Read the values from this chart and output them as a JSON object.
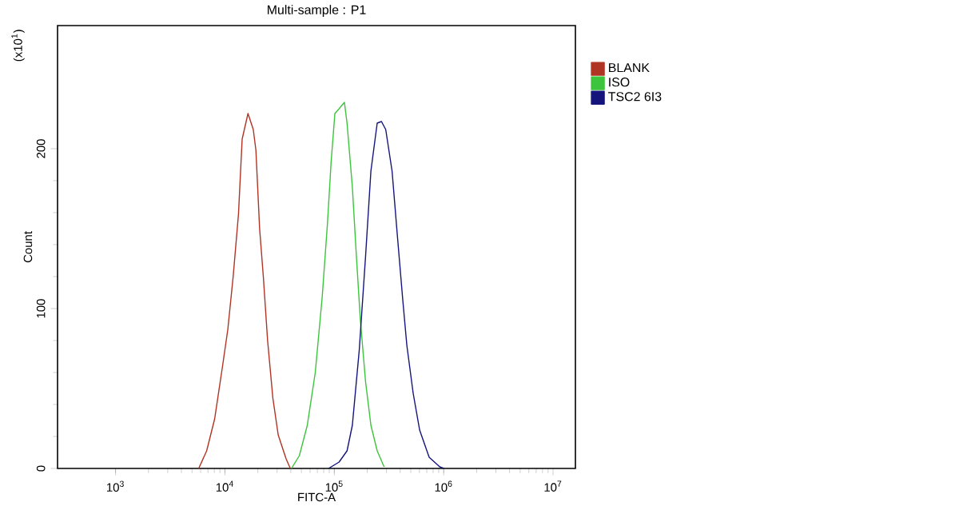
{
  "chart_data": {
    "type": "line",
    "title": "Multi-sample : P1",
    "xlabel": "FITC-A",
    "ylabel": "Count",
    "annotations": [
      "(x10$^{1}$)"
    ],
    "log": "x",
    "grid": false,
    "legend": "top right",
    "marker": "none",
    "line_style": "solid",
    "xlim": [
      295,
      16000000
    ],
    "xticks": [
      {
        "value": 1000,
        "label": "10$^{3}$"
      },
      {
        "value": 10000,
        "label": "10$^{4}$"
      },
      {
        "value": 100000,
        "label": "10$^{5}$"
      },
      {
        "value": 1000000,
        "label": "10$^{6}$"
      },
      {
        "value": 10000000,
        "label": "10$^{7}$"
      }
    ],
    "ylim": [
      0,
      277
    ],
    "yticks": [
      0,
      100,
      200
    ],
    "series": [
      {
        "name": "BLANK",
        "color": "#b03424",
        "x": [
          5754,
          6808,
          8054,
          9510,
          10630,
          11890,
          13300,
          14370,
          16250,
          18160,
          19200,
          20750,
          22440,
          24550,
          27420,
          30680,
          36250,
          39630
        ],
        "values": [
          0,
          11,
          31,
          64,
          87,
          120,
          159,
          206,
          222,
          212,
          199,
          150,
          120,
          80,
          44,
          21,
          6,
          0
        ]
      },
      {
        "name": "ISO",
        "color": "#3cc43c",
        "x": [
          40550,
          47900,
          56620,
          66970,
          77450,
          86510,
          93560,
          101200,
          110600,
          123700,
          130700,
          146200,
          158100,
          172900,
          193200,
          216000,
          246600,
          285100
        ],
        "values": [
          0,
          8,
          27,
          60,
          107,
          153,
          192,
          222,
          225,
          229,
          216,
          176,
          136,
          93,
          54,
          27,
          11,
          1
        ]
      },
      {
        "name": "TSC2 6I3",
        "color": "#14147c",
        "x": [
          88500,
          110600,
          130700,
          146200,
          169000,
          193200,
          216000,
          246600,
          269800,
          295100,
          337300,
          376700,
          421700,
          460300,
          526000,
          602600,
          736200,
          920400,
          1005000
        ],
        "values": [
          0,
          4,
          11,
          27,
          74,
          133,
          186,
          216,
          217,
          212,
          186,
          146,
          106,
          77,
          47,
          24,
          7,
          1,
          0
        ]
      }
    ]
  }
}
